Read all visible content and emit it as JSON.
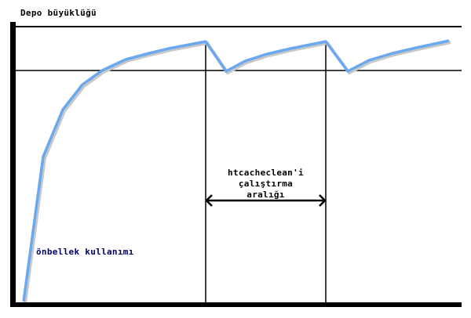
{
  "diagram": {
    "y_axis_title": "Depo büyüklüğü",
    "interval_label": [
      "htcacheclean'i",
      "çalıştırma",
      "aralığı"
    ],
    "curve_label": "önbellek kullanımı",
    "colors": {
      "curve": "#6aa8f0",
      "axes": "#000000",
      "curve_label": "#000066"
    }
  }
}
